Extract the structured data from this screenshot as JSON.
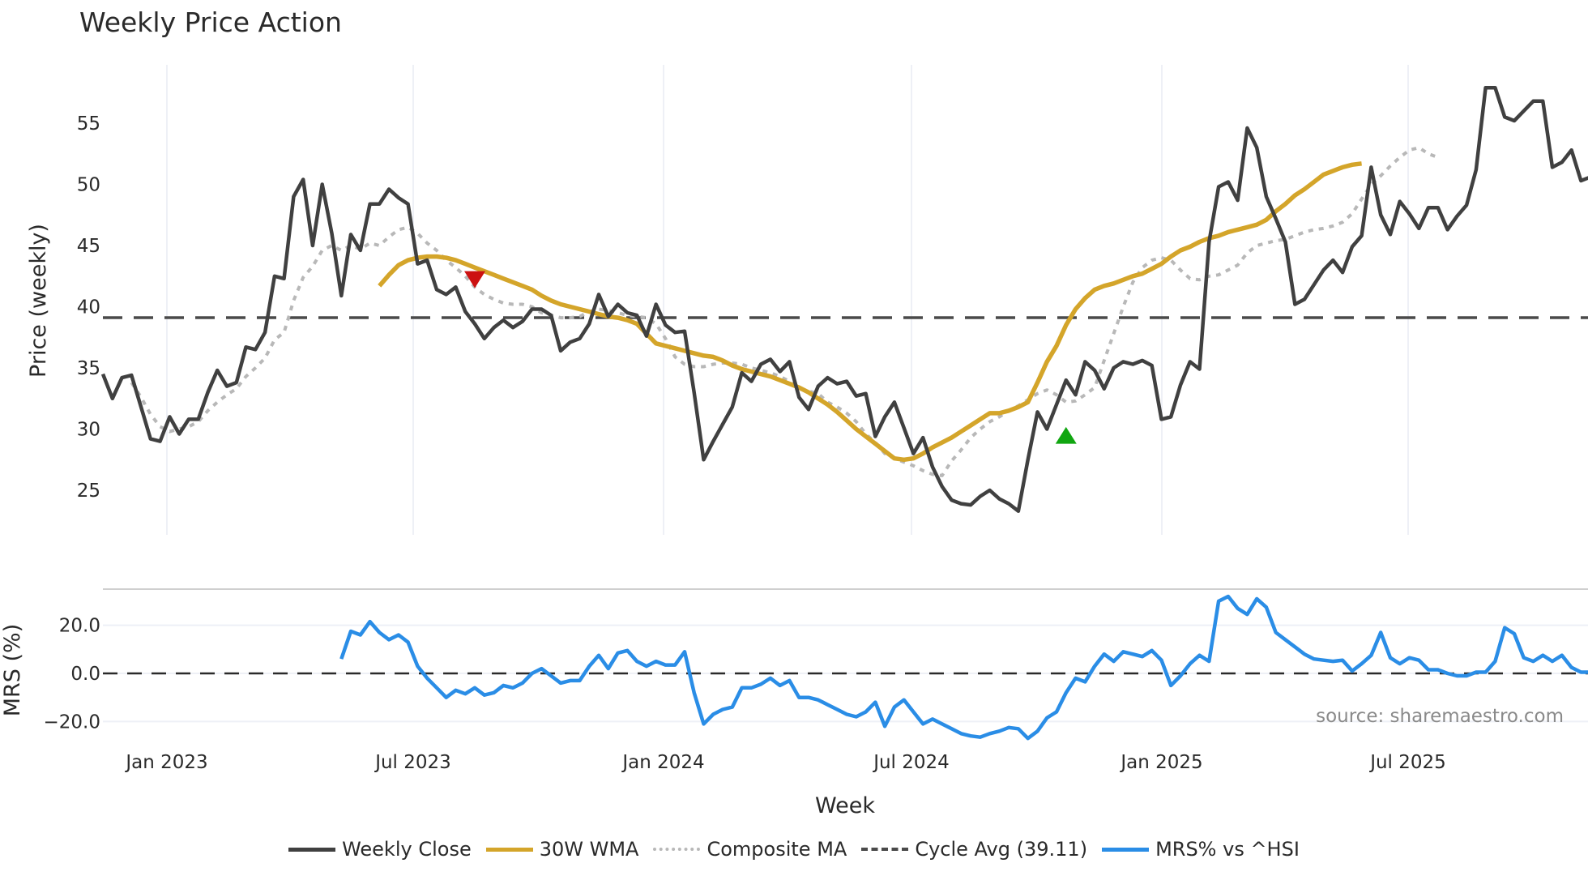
{
  "title": "Weekly Price Action",
  "source": "source: sharemaestro.com",
  "colors": {
    "weekly_close": "#404040",
    "wma": "#d4a52a",
    "composite": "#b8b8b8",
    "cycle_avg": "#4a4a4a",
    "mrs": "#2a8de6",
    "sell_marker": "#cc1111",
    "buy_marker": "#11a611",
    "grid": "#eef0f6"
  },
  "legend": [
    {
      "key": "weekly_close",
      "label": "Weekly Close"
    },
    {
      "key": "wma",
      "label": "30W WMA"
    },
    {
      "key": "composite",
      "label": "Composite MA"
    },
    {
      "key": "cycle_avg",
      "label": "Cycle Avg (39.11)"
    },
    {
      "key": "mrs",
      "label": "MRS% vs ^HSI"
    }
  ],
  "chart_data": [
    {
      "type": "line",
      "title": "Weekly Price Action",
      "xlabel": "Week",
      "ylabel": "Price (weekly)",
      "x_ticks": [
        "Jan 2023",
        "Jul 2023",
        "Jan 2024",
        "Jul 2024",
        "Jan 2025",
        "Jul 2025"
      ],
      "y_ticks": [
        25,
        30,
        35,
        40,
        45,
        50,
        55
      ],
      "ylim": [
        21.5,
        59.5
      ],
      "grid": true,
      "legend_position": "bottom",
      "annotations": [
        {
          "type": "sell-marker",
          "shape": "triangle-down",
          "week_index": 39,
          "value": 42.3
        },
        {
          "type": "buy-marker",
          "shape": "triangle-up",
          "week_index": 101,
          "value": 29.4
        }
      ],
      "series": [
        {
          "name": "Weekly Close",
          "start_index": 0,
          "values": [
            34.5,
            32.5,
            34.2,
            34.4,
            31.8,
            29.2,
            29.0,
            31.0,
            29.6,
            30.8,
            30.8,
            33.0,
            34.8,
            33.5,
            33.8,
            36.7,
            36.5,
            37.9,
            42.5,
            42.3,
            49.0,
            50.4,
            45.0,
            50.0,
            46.0,
            40.9,
            45.9,
            44.6,
            48.4,
            48.4,
            49.6,
            48.9,
            48.4,
            43.5,
            43.8,
            41.4,
            41.0,
            41.6,
            39.6,
            38.6,
            37.4,
            38.3,
            38.9,
            38.3,
            38.8,
            39.8,
            39.8,
            39.3,
            36.4,
            37.1,
            37.4,
            38.6,
            41.0,
            39.2,
            40.2,
            39.5,
            39.3,
            37.6,
            40.2,
            38.5,
            37.9,
            38.0,
            33.0,
            27.5,
            29.0,
            30.4,
            31.8,
            34.6,
            33.9,
            35.3,
            35.7,
            34.7,
            35.5,
            32.6,
            31.6,
            33.5,
            34.2,
            33.7,
            33.9,
            32.7,
            32.9,
            29.4,
            31.0,
            32.2,
            30.1,
            28.0,
            29.3,
            26.9,
            25.3,
            24.2,
            23.9,
            23.8,
            24.5,
            25.0,
            24.3,
            23.9,
            23.3,
            27.5,
            31.4,
            30.0,
            32.0,
            34.0,
            32.8,
            35.5,
            34.8,
            33.3,
            35.0,
            35.5,
            35.3,
            35.6,
            35.2,
            30.8,
            31.0,
            33.6,
            35.5,
            34.9,
            45.3,
            49.8,
            50.2,
            48.7,
            54.6,
            53.0,
            49.0,
            47.2,
            45.3,
            40.2,
            40.6,
            41.8,
            43.0,
            43.8,
            42.8,
            44.9,
            45.8,
            51.4,
            47.5,
            45.9,
            48.6,
            47.6,
            46.4,
            48.1,
            48.1,
            46.3,
            47.4,
            48.3,
            51.2,
            57.9,
            57.9,
            55.5,
            55.2,
            56.0,
            56.8,
            56.8,
            51.4,
            51.8,
            52.8,
            50.3,
            50.6
          ]
        },
        {
          "name": "30W WMA",
          "start_index": 29,
          "values": [
            41.7,
            42.6,
            43.4,
            43.8,
            44.0,
            44.1,
            44.1,
            44.0,
            43.8,
            43.5,
            43.2,
            42.9,
            42.6,
            42.3,
            42.0,
            41.7,
            41.4,
            40.9,
            40.5,
            40.2,
            40.0,
            39.8,
            39.6,
            39.4,
            39.2,
            39.1,
            38.9,
            38.6,
            37.8,
            37.0,
            36.8,
            36.6,
            36.4,
            36.2,
            36.0,
            35.9,
            35.6,
            35.2,
            34.9,
            34.7,
            34.5,
            34.3,
            34.0,
            33.7,
            33.4,
            33.0,
            32.5,
            32.0,
            31.4,
            30.7,
            30.0,
            29.4,
            28.8,
            28.2,
            27.6,
            27.5,
            27.6,
            28.0,
            28.5,
            28.9,
            29.3,
            29.8,
            30.3,
            30.8,
            31.3,
            31.3,
            31.5,
            31.8,
            32.2,
            33.8,
            35.5,
            36.8,
            38.5,
            39.8,
            40.7,
            41.4,
            41.7,
            41.9,
            42.2,
            42.5,
            42.7,
            43.1,
            43.5,
            44.1,
            44.6,
            44.9,
            45.3,
            45.6,
            45.8,
            46.1,
            46.3,
            46.5,
            46.7,
            47.1,
            47.8,
            48.4,
            49.1,
            49.6,
            50.2,
            50.8,
            51.1,
            51.4,
            51.6,
            51.7
          ]
        },
        {
          "name": "Composite MA",
          "start_index": 3,
          "values": [
            33.8,
            32.6,
            31.2,
            30.2,
            29.8,
            30.0,
            30.2,
            30.6,
            31.5,
            32.2,
            32.8,
            33.3,
            34.3,
            35.0,
            35.8,
            37.3,
            37.9,
            40.5,
            42.4,
            43.3,
            44.6,
            45.0,
            44.6,
            45.0,
            44.7,
            45.2,
            45.0,
            45.7,
            46.3,
            46.5,
            46.0,
            45.2,
            44.6,
            43.8,
            43.2,
            42.5,
            41.6,
            41.0,
            40.6,
            40.3,
            40.2,
            40.2,
            40.0,
            39.5,
            39.3,
            39.1,
            39.1,
            39.2,
            39.6,
            39.8,
            39.7,
            39.5,
            39.3,
            39.2,
            39.1,
            38.6,
            37.4,
            35.9,
            35.3,
            35.1,
            35.1,
            35.3,
            35.4,
            35.4,
            35.3,
            35.0,
            34.8,
            34.6,
            34.3,
            33.9,
            33.3,
            33.1,
            32.9,
            32.2,
            31.8,
            31.3,
            30.6,
            29.6,
            28.9,
            28.0,
            27.6,
            27.3,
            27.0,
            26.6,
            26.3,
            26.2,
            27.4,
            28.3,
            29.3,
            30.0,
            30.6,
            31.0,
            31.5,
            31.9,
            32.4,
            32.9,
            33.2,
            32.8,
            32.2,
            32.3,
            32.8,
            33.4,
            35.6,
            37.8,
            40.0,
            42.0,
            43.2,
            43.8,
            44.0,
            43.8,
            43.0,
            42.3,
            42.2,
            42.5,
            42.6,
            43.0,
            43.4,
            44.4,
            45.0,
            45.2,
            45.4,
            45.5,
            45.8,
            46.1,
            46.3,
            46.4,
            46.6,
            46.9,
            47.6,
            48.8,
            50.0,
            50.7,
            51.5,
            52.2,
            52.8,
            53.0,
            52.5,
            52.2
          ]
        },
        {
          "name": "Cycle Avg (39.11)",
          "constant": 39.11
        }
      ]
    },
    {
      "type": "line",
      "ylabel": "MRS (%)",
      "y_ticks": [
        -20.0,
        0.0,
        20.0
      ],
      "ylim": [
        -32,
        37
      ],
      "reference_line": 0.0,
      "series": [
        {
          "name": "MRS% vs ^HSI",
          "start_index": 25,
          "values": [
            6,
            17.5,
            16,
            21.5,
            17,
            14,
            16,
            13,
            3,
            -2,
            -6,
            -10,
            -7,
            -8.5,
            -6,
            -9,
            -8,
            -5,
            -6,
            -4,
            0,
            2,
            -1,
            -4,
            -3,
            -3,
            3,
            7.5,
            2,
            8.5,
            9.5,
            5,
            3,
            5,
            3.5,
            3.5,
            9,
            -8,
            -21,
            -17,
            -15,
            -14,
            -6,
            -6,
            -4.5,
            -2,
            -5,
            -3,
            -10,
            -10,
            -11,
            -13,
            -15,
            -17,
            -18,
            -16,
            -12,
            -22,
            -14,
            -11,
            -16,
            -21,
            -19,
            -21,
            -23,
            -25,
            -26,
            -26.5,
            -25,
            -24,
            -22.5,
            -23,
            -27,
            -24,
            -18.5,
            -16,
            -8,
            -2,
            -3.5,
            3,
            8,
            5,
            9,
            8,
            7,
            9.5,
            5.5,
            -5,
            -1,
            4,
            7.5,
            5,
            30,
            32,
            27,
            24.5,
            31,
            27.5,
            17,
            14,
            11,
            8,
            6,
            5.5,
            5,
            5.5,
            1,
            4,
            7.5,
            17,
            6.5,
            4,
            6.5,
            5.5,
            1.5,
            1.5,
            0,
            -1,
            -1,
            0.5,
            0.5,
            5,
            19,
            16.5,
            6.5,
            5,
            7.5,
            5,
            7.5,
            2.5,
            0.5,
            0.5,
            -3.5,
            -5.5
          ]
        }
      ]
    }
  ]
}
